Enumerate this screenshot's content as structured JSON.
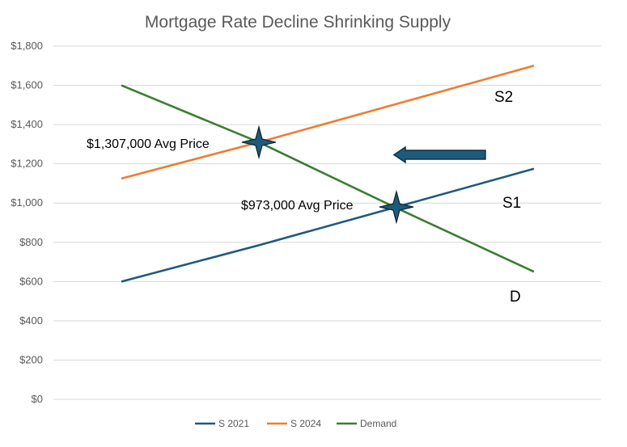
{
  "chart_data": {
    "type": "line",
    "title": "Mortgage Rate Decline Shrinking Supply",
    "xlabel": "",
    "ylabel": "",
    "ylim": [
      0,
      1800
    ],
    "y_ticks": [
      "$0",
      "$200",
      "$400",
      "$600",
      "$800",
      "$1,000",
      "$1,200",
      "$1,400",
      "$1,600",
      "$1,800"
    ],
    "grid": true,
    "legend_position": "bottom",
    "x": [
      1,
      2,
      3,
      4
    ],
    "series": [
      {
        "name": "S 2021",
        "color": "#1f5a7a",
        "values": [
          600,
          785,
          980,
          1175
        ]
      },
      {
        "name": "S 2024",
        "color": "#ed7d31",
        "values": [
          1125,
          1310,
          1505,
          1700
        ]
      },
      {
        "name": "Demand",
        "color": "#3a7d34",
        "values": [
          1600,
          1310,
          975,
          650
        ]
      }
    ],
    "annotations": [
      {
        "id": "ann-2024",
        "text": "$1,307,000 Avg Price"
      },
      {
        "id": "ann-2021",
        "text": "$973,000 Avg Price"
      }
    ],
    "curve_labels": [
      {
        "id": "label-s2",
        "text": "S2"
      },
      {
        "id": "label-s1",
        "text": "S1"
      },
      {
        "id": "label-d",
        "text": "D"
      }
    ],
    "equilibrium_points": [
      {
        "name": "eq-2024",
        "x": 2,
        "y": 1310
      },
      {
        "name": "eq-2021",
        "x": 3,
        "y": 980
      }
    ],
    "arrow_color": "#1f5a7a",
    "arrow_direction": "left"
  }
}
